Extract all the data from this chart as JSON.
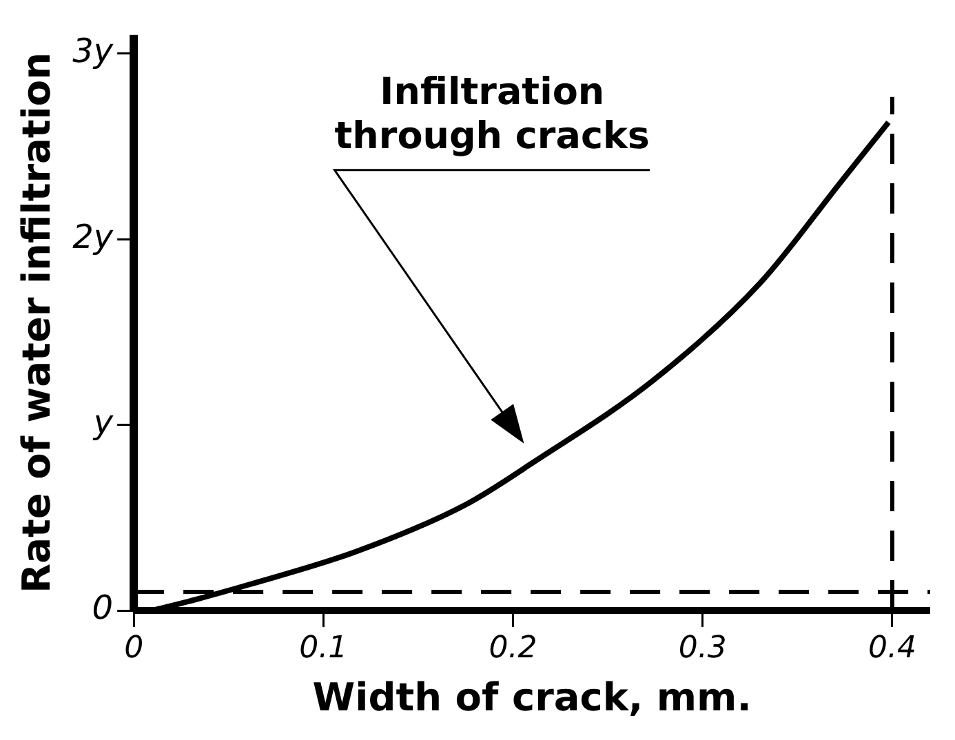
{
  "chart_data": {
    "type": "line",
    "xlabel": "Width of crack, mm.",
    "ylabel": "Rate of water infiltration",
    "x": [
      0.01,
      0.033,
      0.061,
      0.118,
      0.175,
      0.211,
      0.274,
      0.33,
      0.373,
      0.398
    ],
    "series": [
      {
        "color": "#000000",
        "values": [
          0,
          0.06,
          0.14,
          0.32,
          0.57,
          0.8,
          1.24,
          1.76,
          2.31,
          2.63
        ]
      }
    ],
    "xlim": [
      0,
      0.42
    ],
    "xticks": [
      0,
      0.1,
      0.2,
      0.3,
      0.4
    ],
    "ylim": [
      0,
      3.1
    ],
    "yticks": [
      {
        "value": 0,
        "label": "0"
      },
      {
        "value": 1,
        "label": "y"
      },
      {
        "value": 2,
        "label": "2y"
      },
      {
        "value": 3,
        "label": "3y"
      }
    ],
    "ref_lines": [
      {
        "axis": "y",
        "value": 0.1,
        "color": "#000000",
        "line_style": "dashed"
      },
      {
        "axis": "x",
        "value": 0.4,
        "color": "#000000",
        "line_style": "dashed"
      }
    ],
    "annotations": [
      "Infiltration\nthrough cracks"
    ],
    "grid": false,
    "legend": false,
    "marker": "none",
    "line_style": "solid"
  }
}
